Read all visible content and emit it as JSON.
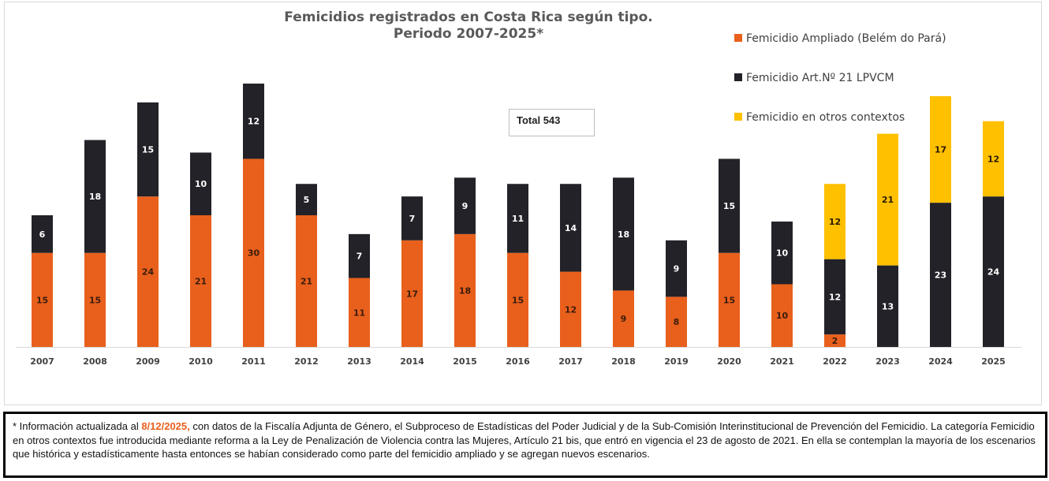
{
  "chart_data": {
    "type": "bar",
    "stacked": true,
    "title": "Femicidios registrados en Costa Rica según tipo.",
    "subtitle": "Periodo 2007-2025*",
    "xlabel": "",
    "ylabel": "",
    "ylim": [
      0,
      42
    ],
    "grid": false,
    "legend_position": "top-right",
    "categories": [
      "2007",
      "2008",
      "2009",
      "2010",
      "2011",
      "2012",
      "2013",
      "2014",
      "2015",
      "2016",
      "2017",
      "2018",
      "2019",
      "2020",
      "2021",
      "2022",
      "2023",
      "2024",
      "2025"
    ],
    "series": [
      {
        "name": "Femicidio Ampliado (Belém do Pará)",
        "color": "#E8601C",
        "label_color": "#3b1c0c",
        "values": [
          15,
          15,
          24,
          21,
          30,
          21,
          11,
          17,
          18,
          15,
          12,
          9,
          8,
          15,
          10,
          2,
          0,
          0,
          0
        ]
      },
      {
        "name": "Femicidio Art.Nº 21 LPVCM",
        "color": "#232228",
        "label_color": "#ffffff",
        "values": [
          6,
          18,
          15,
          10,
          12,
          5,
          7,
          7,
          9,
          11,
          14,
          18,
          9,
          15,
          10,
          12,
          13,
          23,
          24
        ]
      },
      {
        "name": "Femicidio en otros contextos",
        "color": "#FFC000",
        "label_color": "#2a1a00",
        "values": [
          0,
          0,
          0,
          0,
          0,
          0,
          0,
          0,
          0,
          0,
          0,
          0,
          0,
          0,
          0,
          12,
          21,
          17,
          12
        ]
      }
    ],
    "annotations": [
      {
        "text": "Total 543"
      }
    ]
  },
  "total_box": {
    "label": "Total 543"
  },
  "footnote": {
    "prefix": "* Información actualizada al ",
    "date": "8/12/2025,",
    "body": " con datos de la Fiscalía Adjunta de Género, el Subproceso de Estadísticas del Poder Judicial y de la Sub-Comisión Interinstitucional de Prevención del Femicidio.  La categoría Femicidio en otros contextos fue introducida mediante reforma a la Ley de Penalización de Violencia contra las Mujeres, Artículo 21 bis, que entró en vigencia el 23 de agosto de 2021. En ella se contemplan la mayoría de los escenarios que histórica y estadísticamente hasta entonces se habían considerado como parte del femicidio ampliado y se agregan nuevos escenarios."
  }
}
